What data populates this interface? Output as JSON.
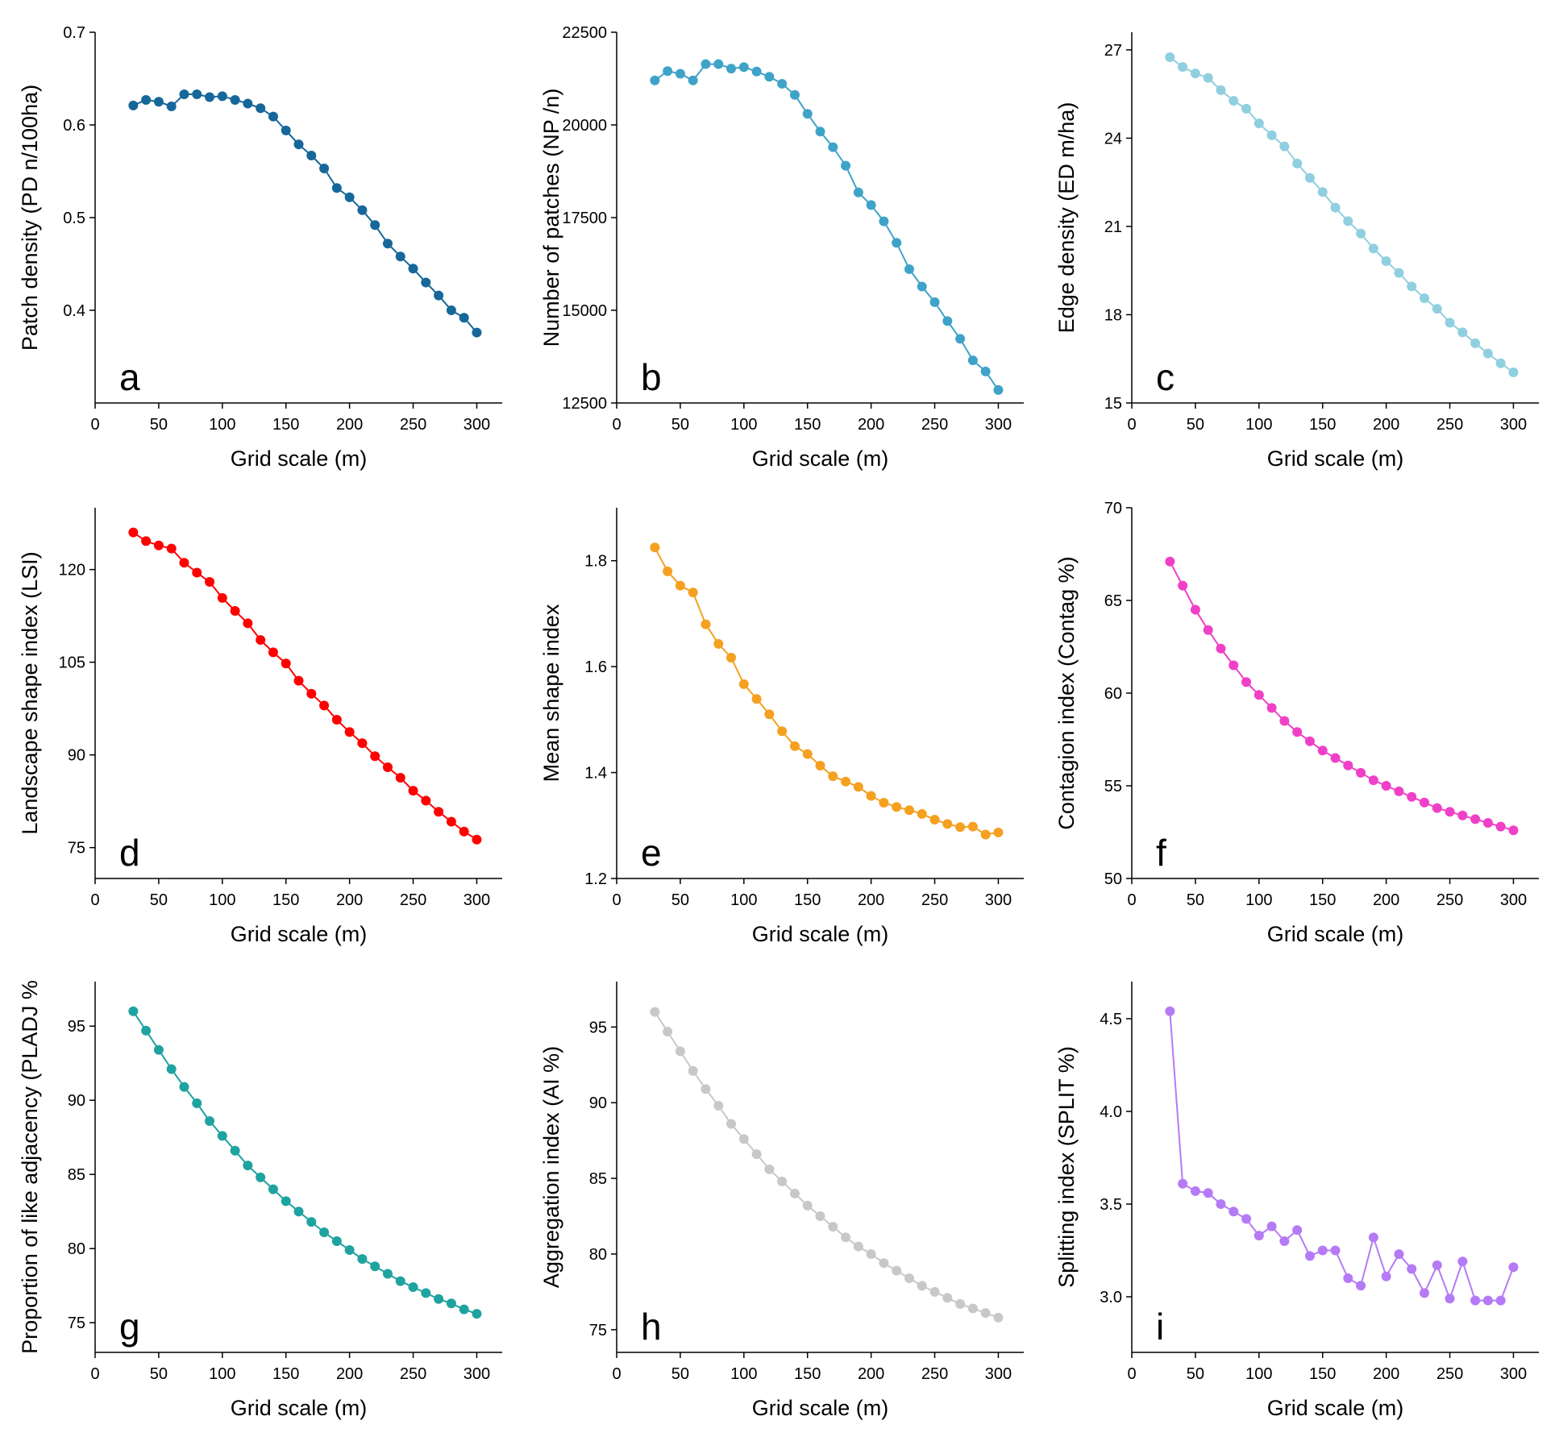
{
  "xlabel": "Grid scale (m)",
  "x_ticks": [
    0,
    50,
    100,
    150,
    200,
    250,
    300
  ],
  "x_lim": [
    0,
    320
  ],
  "chart_data": [
    {
      "type": "line",
      "panel": "a",
      "color": "#16679a",
      "ylabel": "Patch density (PD n/100ha)",
      "ylim": [
        0.3,
        0.7
      ],
      "yticks": [
        0.4,
        0.5,
        0.6,
        0.7
      ],
      "ytick_labels": [
        "0.4",
        "0.5",
        "0.6",
        "0.7"
      ],
      "x": [
        30,
        40,
        50,
        60,
        70,
        80,
        90,
        100,
        110,
        120,
        130,
        140,
        150,
        160,
        170,
        180,
        190,
        200,
        210,
        220,
        230,
        240,
        250,
        260,
        270,
        280,
        290,
        300
      ],
      "y": [
        0.621,
        0.627,
        0.625,
        0.62,
        0.633,
        0.633,
        0.63,
        0.631,
        0.627,
        0.623,
        0.618,
        0.609,
        0.594,
        0.579,
        0.567,
        0.553,
        0.532,
        0.522,
        0.508,
        0.492,
        0.472,
        0.458,
        0.445,
        0.43,
        0.416,
        0.4,
        0.392,
        0.376
      ]
    },
    {
      "type": "line",
      "panel": "b",
      "color": "#3fa3c8",
      "ylabel": "Number of patches (NP /n)",
      "ylim": [
        12500,
        22500
      ],
      "yticks": [
        12500,
        15000,
        17500,
        20000,
        22500
      ],
      "ytick_labels": [
        "12500",
        "15000",
        "17500",
        "20000",
        "22500"
      ],
      "x": [
        30,
        40,
        50,
        60,
        70,
        80,
        90,
        100,
        110,
        120,
        130,
        140,
        150,
        160,
        170,
        180,
        190,
        200,
        210,
        220,
        230,
        240,
        250,
        260,
        270,
        280,
        290,
        300
      ],
      "y": [
        21200,
        21450,
        21380,
        21200,
        21640,
        21640,
        21520,
        21560,
        21440,
        21300,
        21110,
        20810,
        20300,
        19820,
        19400,
        18900,
        18180,
        17840,
        17400,
        16820,
        16110,
        15640,
        15220,
        14710,
        14230,
        13650,
        13350,
        12850
      ]
    },
    {
      "type": "line",
      "panel": "c",
      "color": "#8fcfe0",
      "ylabel": "Edge density (ED m/ha)",
      "ylim": [
        15,
        27.6
      ],
      "yticks": [
        15,
        18,
        21,
        24,
        27
      ],
      "ytick_labels": [
        "15",
        "18",
        "21",
        "24",
        "27"
      ],
      "x": [
        30,
        40,
        50,
        60,
        70,
        80,
        90,
        100,
        110,
        120,
        130,
        140,
        150,
        160,
        170,
        180,
        190,
        200,
        210,
        220,
        230,
        240,
        250,
        260,
        270,
        280,
        290,
        300
      ],
      "y": [
        26.75,
        26.42,
        26.2,
        26.05,
        25.63,
        25.27,
        25.0,
        24.5,
        24.1,
        23.72,
        23.14,
        22.65,
        22.17,
        21.64,
        21.18,
        20.76,
        20.25,
        19.82,
        19.42,
        18.96,
        18.56,
        18.2,
        17.73,
        17.4,
        17.03,
        16.68,
        16.35,
        16.04
      ]
    },
    {
      "type": "line",
      "panel": "d",
      "color": "#ff0000",
      "ylabel": "Landscape shape index (LSI)",
      "ylim": [
        70,
        130
      ],
      "yticks": [
        75,
        90,
        105,
        120
      ],
      "ytick_labels": [
        "75",
        "90",
        "105",
        "120"
      ],
      "x": [
        30,
        40,
        50,
        60,
        70,
        80,
        90,
        100,
        110,
        120,
        130,
        140,
        150,
        160,
        170,
        180,
        190,
        200,
        210,
        220,
        230,
        240,
        250,
        260,
        270,
        280,
        290,
        300
      ],
      "y": [
        126.0,
        124.6,
        123.9,
        123.4,
        121.1,
        119.5,
        118.0,
        115.4,
        113.3,
        111.3,
        108.6,
        106.6,
        104.8,
        102.0,
        99.9,
        98.0,
        95.7,
        93.7,
        91.9,
        89.8,
        88.0,
        86.3,
        84.2,
        82.6,
        80.8,
        79.2,
        77.6,
        76.3
      ]
    },
    {
      "type": "line",
      "panel": "e",
      "color": "#f5a020",
      "ylabel": "Mean shape index",
      "ylim": [
        1.2,
        1.9
      ],
      "yticks": [
        1.2,
        1.4,
        1.6,
        1.8
      ],
      "ytick_labels": [
        "1.2",
        "1.4",
        "1.6",
        "1.8"
      ],
      "x": [
        30,
        40,
        50,
        60,
        70,
        80,
        90,
        100,
        110,
        120,
        130,
        140,
        150,
        160,
        170,
        180,
        190,
        200,
        210,
        220,
        230,
        240,
        250,
        260,
        270,
        280,
        290,
        300
      ],
      "y": [
        1.825,
        1.78,
        1.753,
        1.74,
        1.68,
        1.643,
        1.617,
        1.567,
        1.539,
        1.51,
        1.478,
        1.45,
        1.435,
        1.413,
        1.393,
        1.383,
        1.373,
        1.356,
        1.343,
        1.335,
        1.329,
        1.322,
        1.311,
        1.303,
        1.297,
        1.298,
        1.283,
        1.287
      ]
    },
    {
      "type": "line",
      "panel": "f",
      "color": "#f040c8",
      "ylabel": "Contagion index (Contag %)",
      "ylim": [
        50,
        70
      ],
      "yticks": [
        50,
        55,
        60,
        65,
        70
      ],
      "ytick_labels": [
        "50",
        "55",
        "60",
        "65",
        "70"
      ],
      "x": [
        30,
        40,
        50,
        60,
        70,
        80,
        90,
        100,
        110,
        120,
        130,
        140,
        150,
        160,
        170,
        180,
        190,
        200,
        210,
        220,
        230,
        240,
        250,
        260,
        270,
        280,
        290,
        300
      ],
      "y": [
        67.1,
        65.8,
        64.5,
        63.4,
        62.4,
        61.5,
        60.6,
        59.9,
        59.2,
        58.5,
        57.9,
        57.4,
        56.9,
        56.5,
        56.1,
        55.7,
        55.3,
        55.0,
        54.7,
        54.4,
        54.1,
        53.8,
        53.6,
        53.4,
        53.2,
        53.0,
        52.8,
        52.6
      ]
    },
    {
      "type": "line",
      "panel": "g",
      "color": "#1fa3a0",
      "ylabel": "Proportion of like adjacency (PLADJ %",
      "ylim": [
        73,
        98
      ],
      "yticks": [
        75,
        80,
        85,
        90,
        95
      ],
      "ytick_labels": [
        "75",
        "80",
        "85",
        "90",
        "95"
      ],
      "x": [
        30,
        40,
        50,
        60,
        70,
        80,
        90,
        100,
        110,
        120,
        130,
        140,
        150,
        160,
        170,
        180,
        190,
        200,
        210,
        220,
        230,
        240,
        250,
        260,
        270,
        280,
        290,
        300
      ],
      "y": [
        96.0,
        94.7,
        93.4,
        92.1,
        90.9,
        89.8,
        88.6,
        87.6,
        86.6,
        85.6,
        84.8,
        84.0,
        83.2,
        82.5,
        81.8,
        81.1,
        80.5,
        79.9,
        79.3,
        78.8,
        78.3,
        77.8,
        77.4,
        77.0,
        76.6,
        76.3,
        75.9,
        75.6
      ]
    },
    {
      "type": "line",
      "panel": "h",
      "color": "#c8c8c8",
      "ylabel": "Aggregation index (AI %)",
      "ylim": [
        73.5,
        98
      ],
      "yticks": [
        75,
        80,
        85,
        90,
        95
      ],
      "ytick_labels": [
        "75",
        "80",
        "85",
        "90",
        "95"
      ],
      "x": [
        30,
        40,
        50,
        60,
        70,
        80,
        90,
        100,
        110,
        120,
        130,
        140,
        150,
        160,
        170,
        180,
        190,
        200,
        210,
        220,
        230,
        240,
        250,
        260,
        270,
        280,
        290,
        300
      ],
      "y": [
        96.0,
        94.7,
        93.4,
        92.1,
        90.9,
        89.8,
        88.6,
        87.6,
        86.6,
        85.6,
        84.8,
        84.0,
        83.2,
        82.5,
        81.8,
        81.1,
        80.5,
        80.0,
        79.4,
        78.9,
        78.4,
        77.9,
        77.5,
        77.1,
        76.7,
        76.4,
        76.1,
        75.8
      ]
    },
    {
      "type": "line",
      "panel": "i",
      "color": "#b57af5",
      "ylabel": "Splitting index (SPLIT %)",
      "ylim": [
        2.7,
        4.7
      ],
      "yticks": [
        3.0,
        3.5,
        4.0,
        4.5
      ],
      "ytick_labels": [
        "3.0",
        "3.5",
        "4.0",
        "4.5"
      ],
      "x": [
        30,
        40,
        50,
        60,
        70,
        80,
        90,
        100,
        110,
        120,
        130,
        140,
        150,
        160,
        170,
        180,
        190,
        200,
        210,
        220,
        230,
        240,
        250,
        260,
        270,
        280,
        290,
        300
      ],
      "y": [
        4.54,
        3.61,
        3.57,
        3.56,
        3.5,
        3.46,
        3.42,
        3.33,
        3.38,
        3.3,
        3.36,
        3.22,
        3.25,
        3.25,
        3.1,
        3.06,
        3.32,
        3.11,
        3.23,
        3.15,
        3.02,
        3.17,
        2.99,
        3.19,
        2.98,
        2.98,
        2.98,
        3.16
      ]
    }
  ]
}
